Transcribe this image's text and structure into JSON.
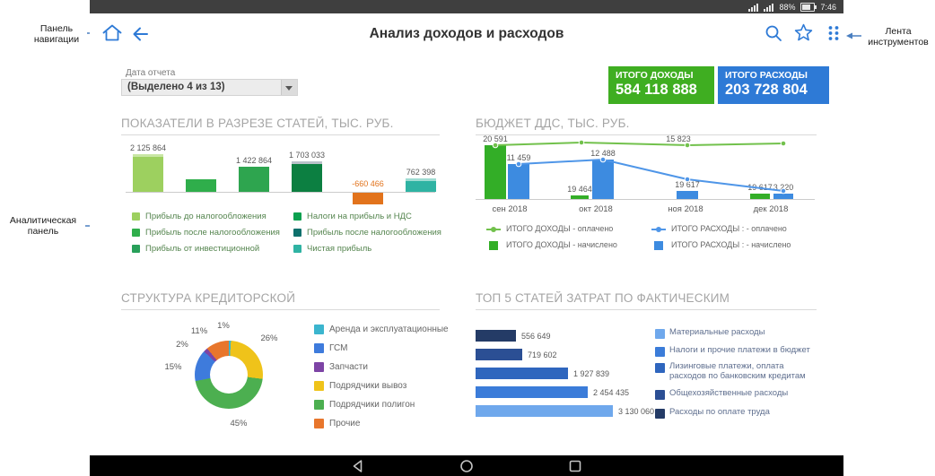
{
  "status_bar": {
    "battery_percent": "88%",
    "time": "7:46",
    "icons": [
      "signal-icon",
      "battery-icon"
    ]
  },
  "app_bar": {
    "title": "Анализ доходов и расходов",
    "icons": [
      "home-icon",
      "back-icon",
      "search-icon",
      "star-icon",
      "toolbar-icon"
    ]
  },
  "annotations": {
    "navigation": "Панель навигации",
    "toolbar": "Лента инструментов",
    "analytics": "Аналитическая панель"
  },
  "filter": {
    "label": "Дата отчета",
    "value": "(Выделено 4 из 13)"
  },
  "kpi": [
    {
      "title": "ИТОГО ДОХОДЫ",
      "value": "584 118 888",
      "color": "#3fae21"
    },
    {
      "title": "ИТОГО РАСХОДЫ",
      "value": "203 728 804",
      "color": "#2e7ad6"
    }
  ],
  "android_nav": {
    "buttons": [
      "back",
      "home",
      "recents"
    ]
  },
  "chart_data": [
    {
      "id": "indicators",
      "type": "bar",
      "title": "ПОКАЗАТЕЛИ В РАЗРЕЗЕ СТАТЕЙ, ТЫС. РУБ.",
      "bars": [
        {
          "label": "2 125 864",
          "value": 2125864,
          "color": "#9dd05f",
          "cap": "#c9e6a4"
        },
        {
          "label": "",
          "value": 700000,
          "color": "#2fae4b"
        },
        {
          "label": "1 422 864",
          "value": 1422864,
          "color": "#2ea54f"
        },
        {
          "label": "1 703 033",
          "value": 1703033,
          "color": "#0c7f41",
          "cap": "#b9c2c9"
        },
        {
          "label": "-660 466",
          "value": -660466,
          "color": "#e2731c",
          "label_color": "#e2731c"
        },
        {
          "label": "762 398",
          "value": 762398,
          "color": "#2fb3a3",
          "cap": "#9fdcd2"
        }
      ],
      "legend": [
        {
          "label": "Прибыль до налогообложения",
          "color": "#9dd05f"
        },
        {
          "label": "Прибыль после налогообложения",
          "color": "#2fae4b"
        },
        {
          "label": "Прибыль от инвестиционной",
          "color": "#28a05a"
        },
        {
          "label": "Налоги на прибыль и НДС",
          "color": "#0ba04f"
        },
        {
          "label": "Прибыль после налогообложения",
          "color": "#0e706c"
        },
        {
          "label": "Чистая прибыль",
          "color": "#2fb3a3"
        }
      ]
    },
    {
      "id": "budget",
      "type": "combo",
      "title": "БЮДЖЕТ ДДС, ТЫС. РУБ.",
      "categories": [
        "сен 2018",
        "окт 2018",
        "ноя 2018",
        "дек 2018"
      ],
      "bar_series": [
        {
          "name": "ИТОГО ДОХОДЫ - начислено",
          "color": "#33ae27",
          "values": [
            20591,
            19464,
            null,
            19617
          ],
          "labels": [
            "20 591",
            "19 464",
            "",
            "19 617"
          ]
        },
        {
          "name": "ИТОГО РАСХОДЫ : - начислено",
          "color": "#3d8be0",
          "values": [
            11459,
            12488,
            19617,
            3220
          ],
          "labels": [
            "11 459",
            "12 488",
            "19 617",
            "3 220"
          ]
        }
      ],
      "line_series": [
        {
          "name": "ИТОГО ДОХОДЫ - оплачено",
          "color": "#72c14c",
          "values": [
            20591,
            null,
            15823,
            null
          ],
          "labels": [
            "",
            "",
            "15 823",
            ""
          ]
        },
        {
          "name": "ИТОГО РАСХОДЫ : - оплачено",
          "color": "#4f96e8",
          "values": [
            11459,
            12488,
            null,
            3220
          ],
          "labels": [
            "",
            "",
            "",
            ""
          ]
        }
      ]
    },
    {
      "id": "structure",
      "type": "pie",
      "title": "СТРУКТУРА КРЕДИТОРСКОЙ",
      "slices": [
        {
          "label": "Аренда и эксплуатационные",
          "pct": 1,
          "color": "#3bb5ce"
        },
        {
          "label": "ГСМ",
          "pct": 15,
          "color": "#3e7bdc"
        },
        {
          "label": "Запчасти",
          "pct": 2,
          "color": "#7d44a5"
        },
        {
          "label": "Подрядчики вывоз",
          "pct": 26,
          "color": "#efc31a"
        },
        {
          "label": "Подрядчики полигон",
          "pct": 45,
          "color": "#4caf50"
        },
        {
          "label": "Прочие",
          "pct": 11,
          "color": "#e8762c"
        }
      ],
      "pct_labels": [
        "26%",
        "45%",
        "15%",
        "2%",
        "11%",
        "1%"
      ]
    },
    {
      "id": "top5",
      "type": "hbar",
      "title": "ТОП 5 СТАТЕЙ ЗАТРАТ ПО ФАКТИЧЕСКИМ",
      "bars": [
        {
          "label": "556 649",
          "value": 556649,
          "color": "#243b66"
        },
        {
          "label": "719 602",
          "value": 719602,
          "color": "#2b4f94"
        },
        {
          "label": "1 927 839",
          "value": 1927839,
          "color": "#2f66be"
        },
        {
          "label": "2 454 435",
          "value": 2454435,
          "color": "#3b7cd9"
        },
        {
          "label": "3 130 060",
          "value": 3130060,
          "color": "#6fa8ec"
        }
      ],
      "legend": [
        {
          "label": "Материальные расходы",
          "color": "#6fa8ec"
        },
        {
          "label": "Налоги и прочие платежи в бюджет",
          "color": "#3b7cd9"
        },
        {
          "label": "Лизинговые платежи, оплата расходов по банковским кредитам",
          "color": "#2f66be"
        },
        {
          "label": "Общехозяйственные расходы",
          "color": "#2b4f94"
        },
        {
          "label": "Расходы по оплате труда",
          "color": "#243b66"
        }
      ]
    }
  ]
}
